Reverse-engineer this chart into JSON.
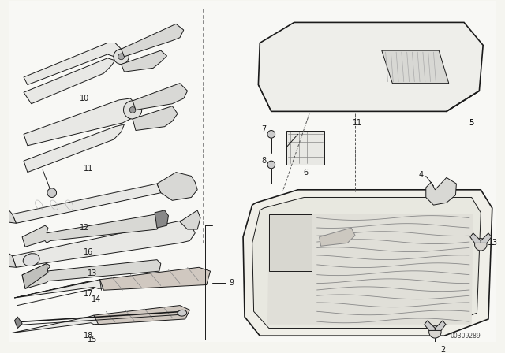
{
  "bg_color": "#f5f5f0",
  "line_color": "#1a1a1a",
  "fig_width": 6.4,
  "fig_height": 4.48,
  "dpi": 100,
  "diagram_number": "00309289"
}
